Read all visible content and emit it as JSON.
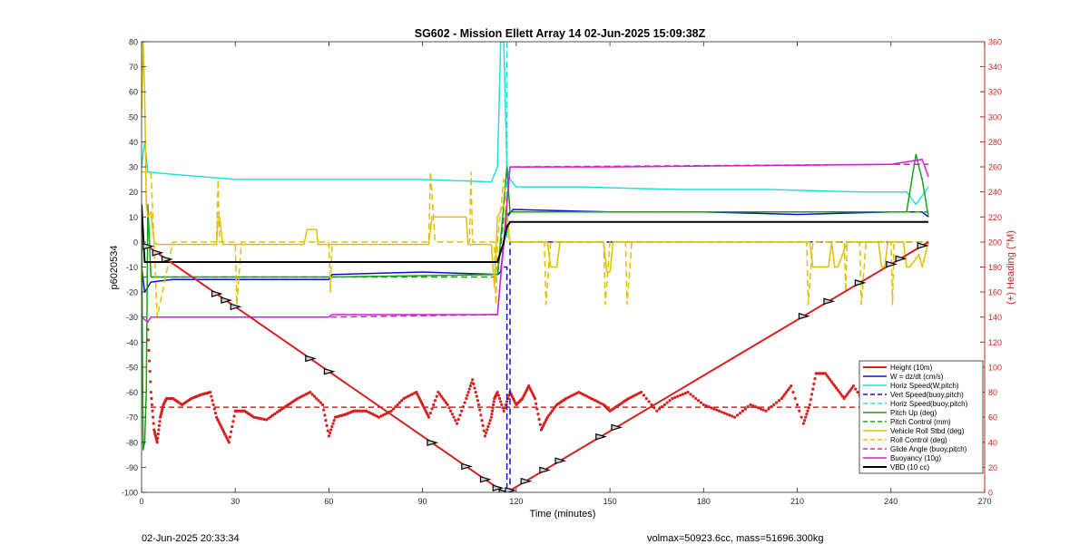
{
  "footer": {
    "timestamp": "02-Jun-2025 20:33:34",
    "mass_info": "volmax=50923.6cc, mass=51696.300kg"
  },
  "chart_data": {
    "type": "line",
    "title": "SG602 - Mission Ellett Array 14 02-Jun-2025 15:09:38Z",
    "xlabel": "Time (minutes)",
    "ylabel": "p6020534",
    "y2label": "(+) Heading (°M)",
    "xlim": [
      0,
      270
    ],
    "ylim": [
      -100,
      80
    ],
    "y2lim": [
      0,
      360
    ],
    "xticks": [
      0,
      30,
      60,
      90,
      120,
      150,
      180,
      210,
      240,
      270
    ],
    "yticks": [
      -100,
      -90,
      -80,
      -70,
      -60,
      -50,
      -40,
      -30,
      -20,
      -10,
      0,
      10,
      20,
      30,
      40,
      50,
      60,
      70,
      80
    ],
    "y2ticks": [
      0,
      20,
      40,
      60,
      80,
      100,
      120,
      140,
      160,
      180,
      200,
      220,
      240,
      260,
      280,
      300,
      320,
      340,
      360
    ],
    "grid": false,
    "legend_position": "bottom-right",
    "colors": {
      "red": "#d62020",
      "blue": "#1010cc",
      "cyan": "#22e0e0",
      "green": "#18a018",
      "yellow": "#e0c000",
      "magenta": "#d020d0",
      "black": "#000000"
    },
    "series": [
      {
        "name": "Height (10m)",
        "color": "red",
        "style": "solid",
        "width": 2,
        "x": [
          0,
          116,
          117,
          252
        ],
        "y": [
          0,
          -100,
          -100,
          0
        ]
      },
      {
        "name": "W = dz/dt (cm/s)",
        "color": "blue",
        "style": "solid",
        "width": 1.5,
        "x": [
          0,
          1,
          3,
          10,
          30,
          60,
          61,
          90,
          114,
          115,
          117,
          119,
          150,
          180,
          210,
          240,
          250,
          252
        ],
        "y": [
          -10,
          -20,
          -16,
          -15,
          -15,
          -15,
          -13,
          -12,
          -13,
          -12,
          10,
          13,
          12,
          12,
          11,
          12,
          12,
          10
        ]
      },
      {
        "name": "Horiz Speed(W,pitch)",
        "color": "cyan",
        "style": "solid",
        "width": 1.5,
        "x": [
          0,
          1,
          2,
          10,
          30,
          60,
          90,
          112,
          114,
          115,
          116,
          117,
          118,
          120,
          140,
          170,
          200,
          230,
          245,
          248,
          252
        ],
        "y": [
          30,
          40,
          28,
          27,
          25,
          25,
          25,
          24,
          30,
          80,
          80,
          30,
          25,
          22,
          22,
          21,
          21,
          20,
          20,
          15,
          22
        ]
      },
      {
        "name": "Vert Speed(buoy,pitch)",
        "color": "blue",
        "style": "dashed",
        "width": 1.5,
        "x": [
          116,
          117,
          117,
          118,
          118,
          120,
          252
        ],
        "y": [
          -10,
          -10,
          -100,
          -100,
          0,
          0,
          0
        ]
      },
      {
        "name": "Horiz Speed(buoy,pitch)",
        "color": "cyan",
        "style": "dashed",
        "width": 1.5,
        "x": [
          117,
          117
        ],
        "y": [
          80,
          0
        ]
      },
      {
        "name": "Pitch Up (deg)",
        "color": "green",
        "style": "solid",
        "width": 1.5,
        "x": [
          0,
          0.5,
          1,
          1.5,
          2,
          3,
          10,
          60,
          114,
          116,
          117,
          118,
          150,
          200,
          245,
          248,
          250,
          252
        ],
        "y": [
          10,
          -83,
          -80,
          -60,
          15,
          -14,
          -14,
          -14,
          -13,
          15,
          30,
          12,
          12,
          12,
          12,
          35,
          25,
          10
        ]
      },
      {
        "name": "Pitch Control (mm)",
        "color": "green",
        "style": "dashed",
        "width": 1.5,
        "x": [
          0,
          3,
          60,
          114,
          116,
          118,
          252
        ],
        "y": [
          -14,
          -14,
          -14,
          -14,
          10,
          12,
          12
        ]
      },
      {
        "name": "Vehicle Roll Stbd (deg)",
        "color": "yellow",
        "style": "solid",
        "width": 1.5,
        "x": [
          0,
          0.5,
          1,
          1.5,
          2,
          3,
          4,
          5,
          10,
          24,
          24.5,
          25,
          26,
          32,
          32.5,
          52,
          53,
          56,
          56.5,
          62,
          62.5,
          92,
          93,
          104,
          104.5,
          106,
          106.5,
          112,
          113,
          114,
          116,
          118,
          130,
          131,
          133,
          134,
          148,
          149,
          150,
          151,
          160,
          190,
          214,
          215,
          220,
          221,
          222,
          223,
          226,
          236,
          237,
          238,
          239,
          244,
          245,
          246,
          249,
          250,
          252
        ],
        "y": [
          50,
          80,
          60,
          15,
          10,
          12,
          0,
          -1,
          -1,
          -1,
          10,
          10,
          -1,
          -1,
          -1,
          -1,
          5,
          5,
          -1,
          -1,
          -1,
          -1,
          10,
          10,
          -1,
          -1,
          -1,
          -1,
          -18,
          10,
          15,
          0,
          0,
          -10,
          -10,
          0,
          0,
          -12,
          -12,
          0,
          0,
          0,
          0,
          -10,
          -10,
          0,
          -10,
          -10,
          0,
          0,
          -10,
          -10,
          0,
          0,
          -10,
          -10,
          -5,
          -10,
          0
        ]
      },
      {
        "name": "Roll Control (deg)",
        "color": "yellow",
        "style": "dashed",
        "width": 1.5,
        "x": [
          0,
          3,
          4,
          5,
          10,
          24,
          24.5,
          25,
          30,
          30.5,
          32,
          60,
          60.5,
          61,
          92,
          92.5,
          94,
          105,
          105.5,
          106,
          113,
          113.5,
          114,
          116,
          118,
          129,
          129.5,
          131,
          148,
          148.5,
          150,
          155,
          155.5,
          157,
          213,
          213.5,
          215,
          225,
          225.5,
          226,
          230,
          230.5,
          232,
          240,
          240.5,
          241,
          250,
          252
        ],
        "y": [
          28,
          28,
          0,
          -30,
          0,
          0,
          25,
          0,
          0,
          -25,
          0,
          0,
          -20,
          0,
          0,
          28,
          0,
          0,
          28,
          0,
          0,
          -25,
          0,
          25,
          0,
          0,
          -25,
          0,
          0,
          -25,
          0,
          0,
          -25,
          0,
          0,
          -25,
          0,
          0,
          -20,
          0,
          0,
          -25,
          0,
          0,
          -25,
          0,
          0,
          0
        ]
      },
      {
        "name": "Glide Angle (buoy,pitch)",
        "color": "magenta",
        "style": "dashed",
        "width": 1.5,
        "x": [
          3,
          60,
          114,
          118,
          240,
          247,
          252
        ],
        "y": [
          -30,
          -30,
          -29,
          30,
          31,
          31,
          31
        ]
      },
      {
        "name": "Buoyancy (10g)",
        "color": "magenta",
        "style": "solid",
        "width": 1.5,
        "x": [
          0,
          2,
          3,
          60,
          61,
          114,
          116,
          118,
          150,
          240,
          245,
          250,
          252
        ],
        "y": [
          -30,
          -32,
          -30,
          -30,
          -29,
          -29,
          0,
          30,
          30,
          31,
          32,
          33,
          26
        ]
      },
      {
        "name": "VBD (10 cc)",
        "color": "black",
        "style": "solid",
        "width": 2,
        "x": [
          0,
          1,
          30,
          60,
          114,
          116,
          117,
          118,
          150,
          200,
          252
        ],
        "y": [
          15,
          -8,
          -8,
          -8,
          -8,
          0,
          6,
          8,
          8,
          8,
          8
        ]
      }
    ],
    "heading_series": {
      "name": "Heading",
      "color": "red",
      "axis": "right",
      "style": "dotted",
      "x": [
        2,
        3,
        4,
        5,
        6,
        7,
        8,
        10,
        13,
        16,
        19,
        22,
        24,
        26,
        28,
        30,
        33,
        36,
        40,
        44,
        47,
        50,
        54,
        58,
        60,
        62,
        65,
        68,
        72,
        76,
        80,
        84,
        88,
        90,
        92,
        95,
        98,
        101,
        104,
        106,
        108,
        110,
        112,
        113,
        114,
        116,
        118,
        120,
        122,
        124,
        126,
        128,
        130,
        133,
        136,
        140,
        144,
        148,
        150,
        153,
        156,
        160,
        165,
        170,
        175,
        180,
        185,
        190,
        195,
        200,
        205,
        208,
        212,
        214,
        216,
        219,
        222,
        225,
        228,
        232,
        236,
        240,
        243,
        246,
        249,
        251
      ],
      "y": [
        130,
        80,
        50,
        40,
        60,
        70,
        75,
        75,
        70,
        75,
        78,
        80,
        60,
        50,
        40,
        65,
        65,
        60,
        58,
        65,
        70,
        75,
        80,
        70,
        45,
        60,
        62,
        65,
        65,
        60,
        65,
        75,
        80,
        70,
        60,
        80,
        70,
        55,
        75,
        90,
        70,
        45,
        60,
        75,
        80,
        65,
        80,
        70,
        75,
        85,
        75,
        50,
        60,
        70,
        75,
        80,
        75,
        70,
        65,
        70,
        75,
        80,
        65,
        75,
        80,
        70,
        65,
        60,
        70,
        65,
        75,
        85,
        55,
        70,
        95,
        95,
        85,
        75,
        85,
        70,
        75,
        65,
        80,
        95,
        75,
        70
      ]
    },
    "heading_control": {
      "color": "red",
      "style": "dashed",
      "y2": 68
    },
    "height_markers": {
      "x": [
        2,
        5,
        8,
        24,
        27,
        30,
        54,
        60,
        93,
        104,
        110,
        114,
        116,
        118,
        123,
        129,
        134,
        147,
        152,
        212,
        220,
        230,
        240,
        243,
        250
      ]
    }
  }
}
